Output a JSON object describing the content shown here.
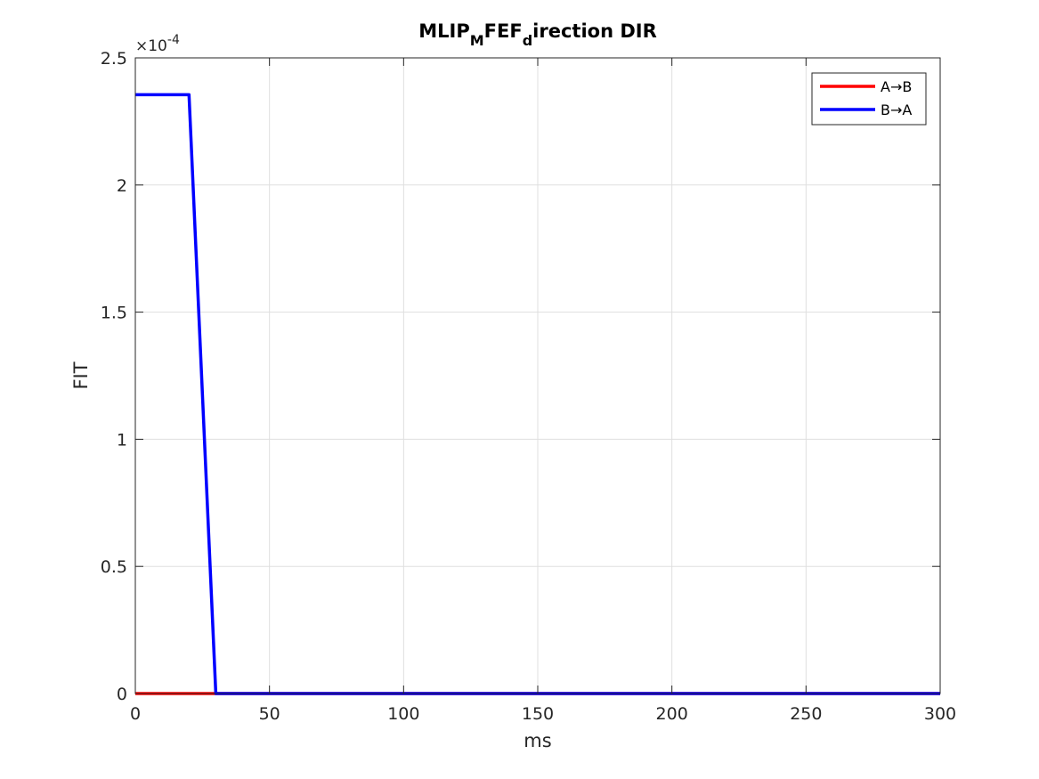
{
  "chart_data": {
    "type": "line",
    "title": {
      "part1": "MLIP",
      "sub1": "M",
      "part2": "FEF",
      "sub2": "d",
      "part3": "irection DIR"
    },
    "xlabel": "ms",
    "ylabel": "FIT",
    "xlim": [
      0,
      300
    ],
    "ylim": [
      0,
      0.00025
    ],
    "x_ticks": [
      0,
      50,
      100,
      150,
      200,
      250,
      300
    ],
    "x_tick_labels": [
      "0",
      "50",
      "100",
      "150",
      "200",
      "250",
      "300"
    ],
    "y_ticks": [
      0,
      5e-05,
      0.0001,
      0.00015,
      0.0002,
      0.00025
    ],
    "y_tick_labels": [
      "0",
      "0.5",
      "1",
      "1.5",
      "2",
      "2.5"
    ],
    "y_exponent_label": "×10",
    "y_exponent_power": "-4",
    "grid": true,
    "legend_position": "top-right",
    "series": [
      {
        "name": "A→B",
        "color": "#ff0000",
        "x": [
          0,
          300
        ],
        "y": [
          0,
          0
        ]
      },
      {
        "name": "B→A",
        "color": "#0000ff",
        "x": [
          0,
          20,
          30,
          300
        ],
        "y": [
          0.0002355,
          0.0002355,
          0,
          0
        ]
      }
    ]
  }
}
